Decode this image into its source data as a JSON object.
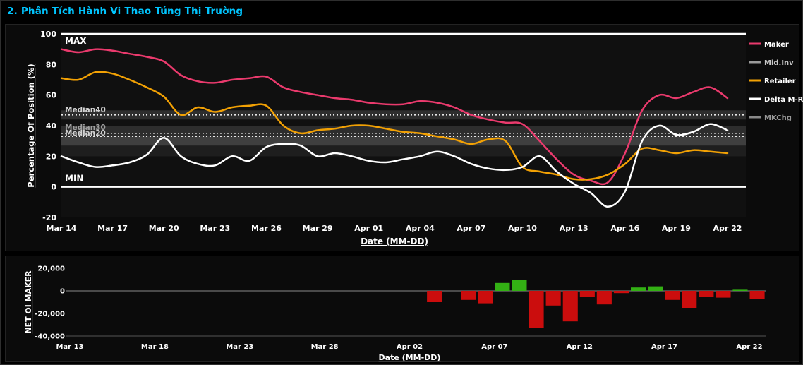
{
  "page": {
    "title": "2. Phân Tích Hành Vi Thao Túng Thị Trường",
    "title_color": "#00c5ff"
  },
  "chart_data": [
    {
      "type": "line",
      "ylabel": "Percentage Of Position (%)",
      "xlabel": "Date (MM-DD)",
      "ylim": [
        -20,
        100
      ],
      "yticks": [
        -20,
        0,
        20,
        40,
        60,
        80,
        100
      ],
      "n_points": 40,
      "x_tick_idx": [
        0,
        3,
        6,
        9,
        12,
        15,
        18,
        21,
        24,
        27,
        30,
        33,
        36,
        39
      ],
      "x_tick_labels": [
        "Mar 14",
        "Mar 17",
        "Mar 20",
        "Mar 23",
        "Mar 26",
        "Mar 29",
        "Apr 01",
        "Apr 04",
        "Apr 07",
        "Apr 10",
        "Apr 13",
        "Apr 16",
        "Apr 19",
        "Apr 22"
      ],
      "annotations": {
        "max": "MAX",
        "min": "MIN",
        "median40": "Median40",
        "median30": "Median30",
        "median20": "Median20"
      },
      "ref_lines": {
        "max": 100,
        "min": 0,
        "median40": 47,
        "median30": 35,
        "median20": 33
      },
      "bands": [
        {
          "from": 44,
          "to": 50,
          "op": 0.13
        },
        {
          "from": 33,
          "to": 40,
          "op": 0.12
        },
        {
          "from": 27,
          "to": 33,
          "op": 0.2
        },
        {
          "from": 20,
          "to": 27,
          "op": 0.06
        }
      ],
      "legend_position": "right",
      "series": [
        {
          "name": "Maker",
          "color": "#ea3a6d",
          "label_color": "#ffffff",
          "values": [
            90,
            88,
            90,
            89,
            87,
            85,
            82,
            73,
            69,
            68,
            70,
            71,
            72,
            65,
            62,
            60,
            58,
            57,
            55,
            54,
            54,
            56,
            55,
            52,
            47,
            44,
            42,
            41,
            30,
            18,
            8,
            4,
            3,
            22,
            50,
            60,
            58,
            62,
            65,
            58
          ]
        },
        {
          "name": "Mid.Inv",
          "color": "#9a9a9a",
          "label_color": "#c8c8c8",
          "values": []
        },
        {
          "name": "Retailer",
          "color": "#f2a104",
          "label_color": "#ffffff",
          "values": [
            71,
            70,
            75,
            74,
            70,
            65,
            59,
            47,
            52,
            49,
            52,
            53,
            53,
            40,
            35,
            37,
            38,
            40,
            40,
            38,
            36,
            35,
            33,
            31,
            28,
            31,
            30,
            13,
            10,
            8,
            5,
            5,
            8,
            15,
            25,
            24,
            22,
            24,
            23,
            22
          ]
        },
        {
          "name": "Delta M-R",
          "color": "#ffffff",
          "label_color": "#ffffff",
          "values": [
            20,
            16,
            13,
            14,
            16,
            21,
            32,
            20,
            15,
            14,
            20,
            17,
            26,
            28,
            27,
            20,
            22,
            20,
            17,
            16,
            18,
            20,
            23,
            20,
            15,
            12,
            11,
            13,
            20,
            10,
            2,
            -4,
            -13,
            -3,
            30,
            40,
            34,
            36,
            41,
            37
          ]
        },
        {
          "name": "MKChg",
          "color": "#8a8a8a",
          "label_color": "#989898",
          "values": []
        }
      ]
    },
    {
      "type": "bar",
      "ylabel": "NET OI MAKER",
      "xlabel": "Date (MM-DD)",
      "ylim": [
        -40000,
        20000
      ],
      "ytick_values": [
        20000,
        0,
        -20000,
        -40000
      ],
      "ytick_labels": [
        "20,000",
        "0",
        "-20,000",
        "-40,000"
      ],
      "n_points": 41,
      "x_tick_idx": [
        0,
        5,
        10,
        15,
        20,
        25,
        30,
        35,
        40
      ],
      "x_tick_labels": [
        "Mar 13",
        "Mar 18",
        "Mar 23",
        "Mar 28",
        "Apr 02",
        "Apr 07",
        "Apr 12",
        "Apr 17",
        "Apr 22"
      ],
      "pos_color": "#33b014",
      "neg_color": "#cb0d0d",
      "values": [
        0,
        0,
        0,
        0,
        0,
        0,
        0,
        0,
        0,
        0,
        0,
        0,
        0,
        0,
        0,
        0,
        0,
        0,
        0,
        0,
        0,
        -10000,
        0,
        -8000,
        -11000,
        7000,
        10000,
        -33000,
        -13000,
        -27000,
        -5000,
        -12000,
        -2000,
        3000,
        4000,
        -8000,
        -15000,
        -5000,
        -6000,
        1000,
        -7000
      ]
    }
  ]
}
